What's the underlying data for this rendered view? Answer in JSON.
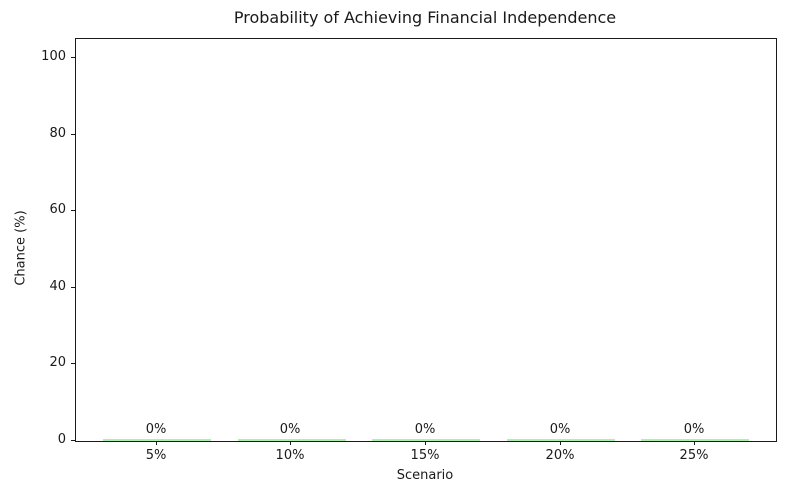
{
  "chart_data": {
    "type": "bar",
    "title": "Probability of Achieving Financial Independence",
    "xlabel": "Scenario",
    "ylabel": "Chance (%)",
    "categories": [
      "5%",
      "10%",
      "15%",
      "20%",
      "25%"
    ],
    "values": [
      0,
      0,
      0,
      0,
      0
    ],
    "bar_labels": [
      "0%",
      "0%",
      "0%",
      "0%",
      "0%"
    ],
    "ylim": [
      0,
      105
    ],
    "yticks": [
      0,
      20,
      40,
      60,
      80,
      100
    ],
    "ytick_labels": [
      "0",
      "20",
      "40",
      "60",
      "80",
      "100"
    ],
    "bar_width_fraction": 0.8,
    "bar_color": "#90ee90",
    "axis_color": "#1a1a1a",
    "text_color": "#1a1a1a",
    "background_color": "#ffffff",
    "grid": false,
    "legend": "none"
  }
}
